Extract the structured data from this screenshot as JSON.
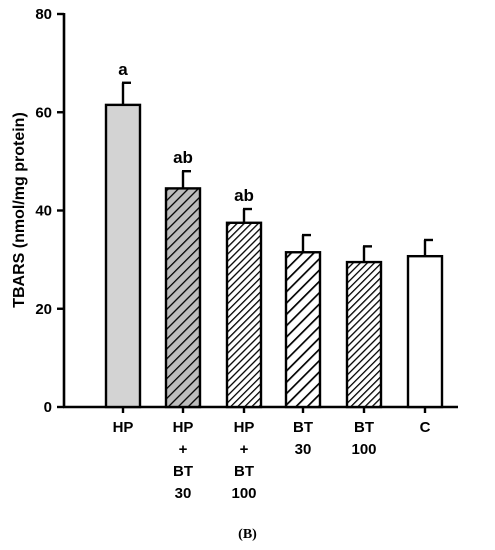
{
  "panel_label": "(B)",
  "chart_data": {
    "type": "bar",
    "title": "",
    "xlabel": "",
    "ylabel": "TBARS (nmol/mg protein)",
    "ylim": [
      0,
      80
    ],
    "yticks": [
      0,
      20,
      40,
      60,
      80
    ],
    "grid": false,
    "categories": [
      {
        "lines": [
          "HP"
        ],
        "value": 61.5,
        "error": 4.5,
        "sig": "a",
        "fill": "solid",
        "color": "#d3d3d3"
      },
      {
        "lines": [
          "HP",
          "+",
          "BT",
          "30"
        ],
        "value": 44.5,
        "error": 3.5,
        "sig": "ab",
        "fill": "hatch-light"
      },
      {
        "lines": [
          "HP",
          "+",
          "BT",
          "100"
        ],
        "value": 37.5,
        "error": 2.8,
        "sig": "ab",
        "fill": "hatch-dense"
      },
      {
        "lines": [
          "BT",
          "30"
        ],
        "value": 31.5,
        "error": 3.5,
        "sig": "",
        "fill": "hatch-wide"
      },
      {
        "lines": [
          "BT",
          "100"
        ],
        "value": 29.5,
        "error": 3.2,
        "sig": "",
        "fill": "hatch-dense"
      },
      {
        "lines": [
          "C"
        ],
        "value": 30.7,
        "error": 3.3,
        "sig": "",
        "fill": "solid",
        "color": "#ffffff"
      }
    ]
  }
}
